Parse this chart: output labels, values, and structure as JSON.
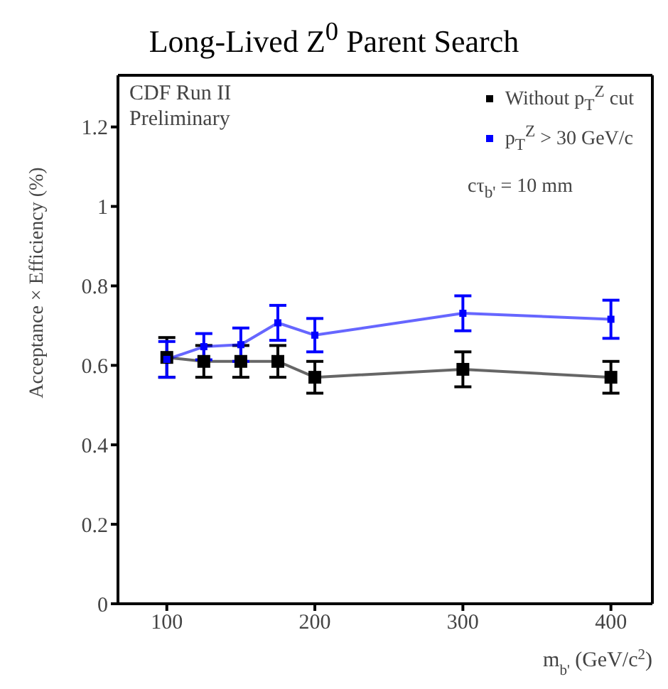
{
  "chart_data": {
    "type": "line",
    "title": "Long-Lived Z$^{0}$ Parent Search",
    "xlabel": "m$_{b'}$ (GeV/c$^{2}$)",
    "ylabel": "Acceptance × Efficiency (%)",
    "x": [
      100,
      125,
      150,
      175,
      200,
      300,
      400
    ],
    "series": [
      {
        "name": "Without p$_{T}$$^{Z}$ cut",
        "color": "#000000",
        "values": [
          0.62,
          0.61,
          0.61,
          0.61,
          0.57,
          0.59,
          0.57
        ],
        "errors": [
          0.05,
          0.04,
          0.04,
          0.04,
          0.04,
          0.044,
          0.04
        ]
      },
      {
        "name": "p$_{T}$$^{Z}$ > 30 GeV/c",
        "color": "#0000ff",
        "values": [
          0.615,
          0.647,
          0.652,
          0.707,
          0.676,
          0.731,
          0.716
        ],
        "errors": [
          0.045,
          0.033,
          0.042,
          0.044,
          0.042,
          0.044,
          0.048
        ]
      }
    ],
    "xlim": [
      67,
      428
    ],
    "xticks": [
      100,
      200,
      300,
      400
    ],
    "ylim": [
      0,
      1.33
    ],
    "yticks": [
      0,
      0.2,
      0.4,
      0.6,
      0.8,
      1,
      1.2
    ],
    "annotations": [
      "CDF Run II",
      "Preliminary",
      "cτ$_{b'}$ = 10 mm"
    ],
    "legend": "top right",
    "marker": "square",
    "line_style": "solid",
    "grid": false
  }
}
